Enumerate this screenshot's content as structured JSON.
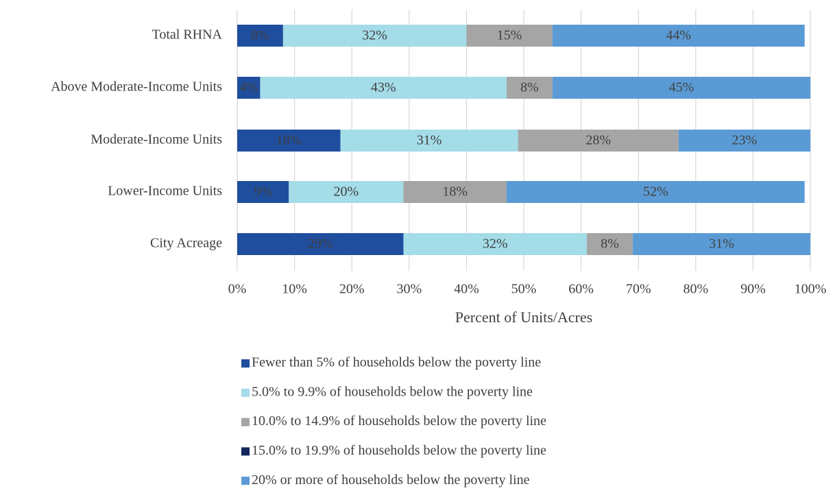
{
  "chart_data": {
    "type": "stacked_barh",
    "categories": [
      "Total RHNA",
      "Above Moderate-Income Units",
      "Moderate-Income Units",
      "Lower-Income Units",
      "City Acreage"
    ],
    "series": [
      {
        "name": "Fewer than 5% of households below the poverty line",
        "color": "#1f4e9e",
        "values": [
          8,
          4,
          18,
          9,
          29
        ],
        "value_labels": [
          "8%",
          "4%",
          "18%",
          "9%",
          "29%"
        ]
      },
      {
        "name": "5.0% to 9.9% of households below the poverty line",
        "color": "#a4dce8",
        "values": [
          32,
          43,
          31,
          20,
          32
        ],
        "value_labels": [
          "32%",
          "43%",
          "31%",
          "20%",
          "32%"
        ]
      },
      {
        "name": "10.0% to 14.9% of households below the poverty line",
        "color": "#a5a5a5",
        "values": [
          15,
          8,
          28,
          18,
          8
        ],
        "value_labels": [
          "15%",
          "8%",
          "28%",
          "18%",
          "8%"
        ]
      },
      {
        "name": "15.0% to 19.9% of households below the poverty line",
        "color": "#14285e",
        "values": [
          0,
          0,
          0,
          0,
          0
        ]
      },
      {
        "name": "20% or more of households below the poverty line",
        "color": "#5b9bd5",
        "values": [
          44,
          45,
          23,
          52,
          31
        ],
        "value_labels": [
          "44%",
          "45%",
          "23%",
          "52%",
          "31%"
        ]
      }
    ],
    "xlabel": "Percent of Units/Acres",
    "xlim": [
      0,
      100
    ],
    "xticks": [
      {
        "value": 0,
        "label": "0%"
      },
      {
        "value": 10,
        "label": "10%"
      },
      {
        "value": 20,
        "label": "20%"
      },
      {
        "value": 30,
        "label": "30%"
      },
      {
        "value": 40,
        "label": "40%"
      },
      {
        "value": 50,
        "label": "50%"
      },
      {
        "value": 60,
        "label": "60%"
      },
      {
        "value": 70,
        "label": "70%"
      },
      {
        "value": 80,
        "label": "80%"
      },
      {
        "value": 90,
        "label": "90%"
      },
      {
        "value": 100,
        "label": "100%"
      }
    ],
    "grid": true,
    "legend": "bottom"
  }
}
